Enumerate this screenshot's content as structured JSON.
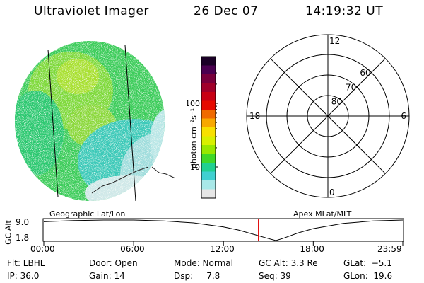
{
  "header": {
    "instrument": "Ultraviolet Imager",
    "date": "26 Dec 07",
    "time": "14:19:32 UT"
  },
  "captions": {
    "left": "Geographic Lat/Lon",
    "right": "Apex MLat/MLT"
  },
  "colorbar": {
    "label": "photon cm⁻²s⁻¹",
    "ticks": [
      {
        "label": "100",
        "value": 100
      },
      {
        "label": "10",
        "value": 10
      }
    ],
    "colors": [
      "#1a0026",
      "#4a0050",
      "#78003c",
      "#a0002a",
      "#c80014",
      "#e60a00",
      "#f06a00",
      "#f8a800",
      "#f8e000",
      "#d8f000",
      "#98e800",
      "#40d828",
      "#20d090",
      "#40d0d0",
      "#a8e8e8",
      "#e6e6e6"
    ]
  },
  "polar": {
    "mlt_labels": [
      {
        "label": "12",
        "angle": 90
      },
      {
        "label": "6",
        "angle": 0
      },
      {
        "label": "18",
        "angle": 180
      },
      {
        "label": "0",
        "angle": 270
      }
    ],
    "lat_labels": [
      {
        "label": "80",
        "lat": 80
      },
      {
        "label": "70",
        "lat": 70
      },
      {
        "label": "60",
        "lat": 60
      }
    ]
  },
  "timeline": {
    "ylabel": "GC Alt",
    "yticks": [
      "9.0",
      "1.8"
    ],
    "xticks": [
      "00:00",
      "06:00",
      "12:00",
      "18:00",
      "23:59"
    ],
    "current_time_hours": 14.33,
    "min_time_hours": 15.5
  },
  "chart_data": [
    {
      "type": "line",
      "title": "GC Alt",
      "xlabel": "UT",
      "ylabel": "GC Alt",
      "x": [
        0,
        2,
        4,
        6,
        8,
        10,
        12,
        13,
        14,
        15,
        15.5,
        16,
        17,
        18,
        20,
        22,
        23.98
      ],
      "values": [
        8.4,
        8.8,
        9.0,
        9.0,
        8.7,
        8.0,
        6.6,
        5.5,
        4.0,
        2.5,
        1.8,
        2.6,
        4.5,
        6.0,
        7.8,
        8.7,
        9.0
      ],
      "ylim": [
        1.8,
        9.0
      ]
    }
  ],
  "footer": {
    "col1": [
      "Flt: LBHL",
      "IP: 36.0"
    ],
    "col2": [
      "Door: Open",
      "Gain: 14"
    ],
    "col3": [
      "Mode: Normal",
      "Dsp:     7.8"
    ],
    "col4": [
      "GC Alt: 3.3 Re",
      "Seq: 39"
    ],
    "col5": [
      "GLat:  −5.1",
      "GLon:  19.6"
    ]
  }
}
